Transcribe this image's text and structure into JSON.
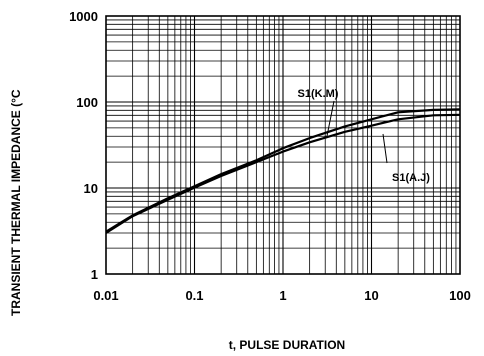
{
  "chart_data": {
    "type": "line",
    "xscale": "log",
    "yscale": "log",
    "xlim": [
      0.01,
      100
    ],
    "ylim": [
      1,
      1000
    ],
    "grid": true,
    "xlabel": "t, PULSE DURATION",
    "ylabel": "TRANSIENT THERMAL IMPEDANCE  (°C",
    "x_ticks": [
      "0.01",
      "0.1",
      "1",
      "10",
      "100"
    ],
    "y_ticks": [
      "1",
      "10",
      "100",
      "1000"
    ],
    "series": [
      {
        "name": "S1(K.M)",
        "x": [
          0.01,
          0.02,
          0.05,
          0.1,
          0.2,
          0.5,
          1,
          2,
          5,
          10,
          20,
          50,
          100
        ],
        "y": [
          3.1,
          4.8,
          7.6,
          10.5,
          14.5,
          21,
          29,
          38,
          52,
          63,
          76,
          81,
          82
        ]
      },
      {
        "name": "S1(A.J)",
        "x": [
          0.01,
          0.02,
          0.05,
          0.1,
          0.2,
          0.5,
          1,
          2,
          5,
          10,
          20,
          50,
          100
        ],
        "y": [
          3.0,
          4.7,
          7.3,
          10.1,
          13.8,
          20,
          26.5,
          34,
          45,
          53,
          63,
          70,
          71
        ]
      }
    ],
    "annotations": [
      "S1(K.M)",
      "S1(A.J)"
    ]
  }
}
